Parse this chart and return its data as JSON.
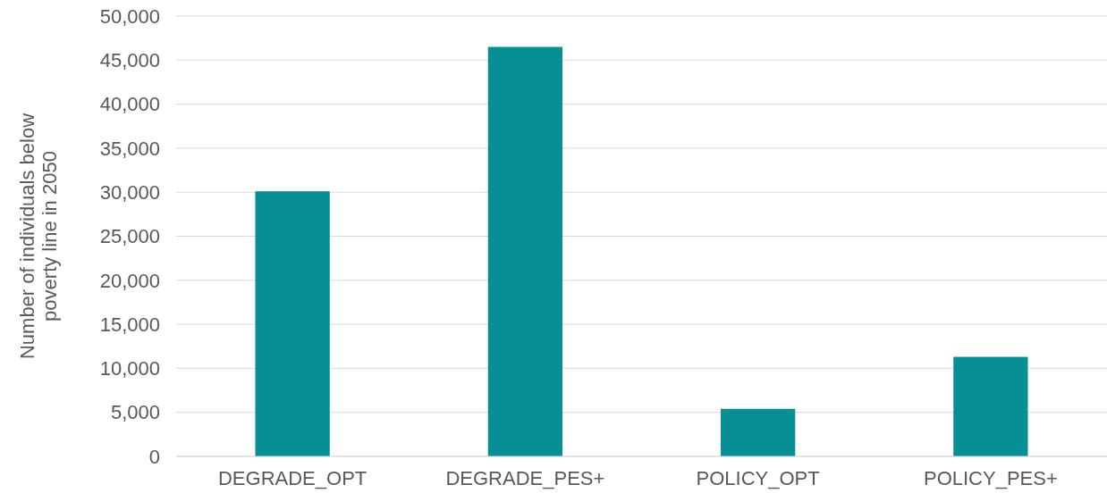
{
  "chart_data": {
    "type": "bar",
    "ylabel": "Number of individuals below poverty line in 2050",
    "categories": [
      "DEGRADE_OPT",
      "DEGRADE_PES+",
      "POLICY_OPT",
      "POLICY_PES+"
    ],
    "values": [
      30100,
      46500,
      5400,
      11300
    ],
    "color": "#068f94",
    "ylim": [
      0,
      50000
    ],
    "yticks": [
      {
        "value": 0,
        "label": "0"
      },
      {
        "value": 5000,
        "label": "5,000"
      },
      {
        "value": 10000,
        "label": "10,000"
      },
      {
        "value": 15000,
        "label": "15,000"
      },
      {
        "value": 20000,
        "label": "20,000"
      },
      {
        "value": 25000,
        "label": "25,000"
      },
      {
        "value": 30000,
        "label": "30,000"
      },
      {
        "value": 35000,
        "label": "35,000"
      },
      {
        "value": 40000,
        "label": "40,000"
      },
      {
        "value": 45000,
        "label": "45,000"
      },
      {
        "value": 50000,
        "label": "50,000"
      }
    ],
    "grid": "y"
  }
}
